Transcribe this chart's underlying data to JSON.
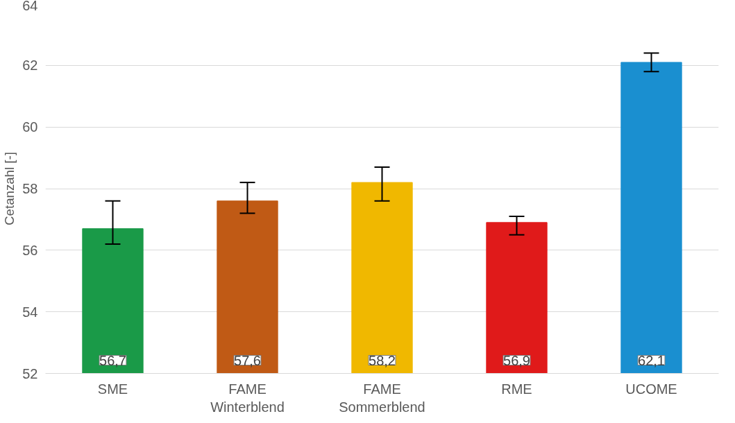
{
  "chart_data": {
    "type": "bar",
    "ylabel": "Cetanzahl [-]",
    "categories": [
      "SME",
      "FAME\nWinterblend",
      "FAME\nSommerblend",
      "RME",
      "UCOME"
    ],
    "values": [
      56.7,
      57.6,
      58.2,
      56.9,
      62.1
    ],
    "colors": [
      "#1a9a48",
      "#c05a15",
      "#f0b800",
      "#e01a1a",
      "#1a8fd0"
    ],
    "errors": [
      [
        56.2,
        57.6
      ],
      [
        57.2,
        58.2
      ],
      [
        57.6,
        58.7
      ],
      [
        56.5,
        57.1
      ],
      [
        61.8,
        62.4
      ]
    ],
    "value_labels": [
      "56,7",
      "57,6",
      "58,2",
      "56,9",
      "62,1"
    ],
    "ylim": [
      52,
      64
    ],
    "yticks": [
      52,
      54,
      56,
      58,
      60,
      62,
      64
    ],
    "grid": "y"
  }
}
